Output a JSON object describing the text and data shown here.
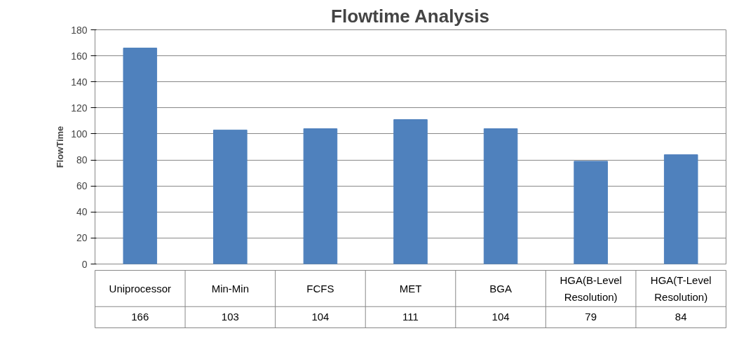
{
  "chart_data": {
    "type": "bar",
    "title": "Flowtime Analysis",
    "ylabel": "FlowTime",
    "categories": [
      "Uniprocessor",
      "Min-Min",
      "FCFS",
      "MET",
      "BGA",
      "HGA(B-Level Resolution)",
      "HGA(T-Level Resolution)"
    ],
    "values": [
      166,
      103,
      104,
      111,
      104,
      79,
      84
    ],
    "color": "#4f81bd",
    "ylim": [
      0,
      180
    ],
    "yticks": [
      0,
      20,
      40,
      60,
      80,
      100,
      120,
      140,
      160,
      180
    ],
    "grid": "y",
    "data_labels": true
  }
}
